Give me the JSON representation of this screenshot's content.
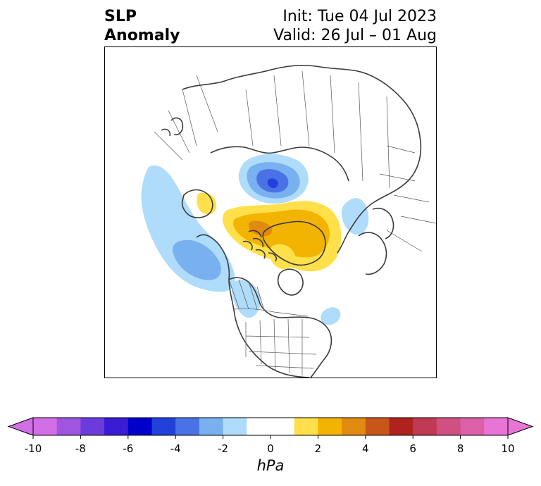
{
  "header": {
    "title_line1": "SLP",
    "title_line2": "Anomaly",
    "init_label": "Init: Tue 04 Jul 2023",
    "valid_label": "Valid: 26 Jul – 01 Aug"
  },
  "map": {
    "projection": "polar-stereographic-north",
    "features": [
      {
        "name": "Aleutian/Bering negative anomaly",
        "sign": "negative",
        "peak_hpa": -3
      },
      {
        "name": "Barents/Kara Sea negative anomaly",
        "sign": "negative",
        "peak_hpa": -5
      },
      {
        "name": "Greenland positive anomaly",
        "sign": "positive",
        "peak_hpa": 4
      },
      {
        "name": "Siberia negative anomaly",
        "sign": "negative",
        "peak_hpa": -2
      },
      {
        "name": "Western Canada negative anomaly",
        "sign": "negative",
        "peak_hpa": -2
      }
    ]
  },
  "colorbar": {
    "unit": "hPa",
    "min": -10,
    "max": 10,
    "tick_labels": [
      "-10",
      "-8",
      "-6",
      "-4",
      "-2",
      "0",
      "2",
      "4",
      "6",
      "8",
      "10"
    ],
    "tick_values": [
      -10,
      -8,
      -6,
      -4,
      -2,
      0,
      2,
      4,
      6,
      8,
      10
    ],
    "extend": "both",
    "colors": [
      "#d26ee6",
      "#9f55e0",
      "#6b3cdc",
      "#3a1bd6",
      "#0000cd",
      "#2140dc",
      "#4a72e6",
      "#78b0f0",
      "#aedcfa",
      "#ffffff",
      "#ffffff",
      "#ffe04a",
      "#f2b400",
      "#e08a10",
      "#c8561a",
      "#b0221e",
      "#c03a55",
      "#d05082",
      "#dc60a8",
      "#e874d6"
    ]
  }
}
